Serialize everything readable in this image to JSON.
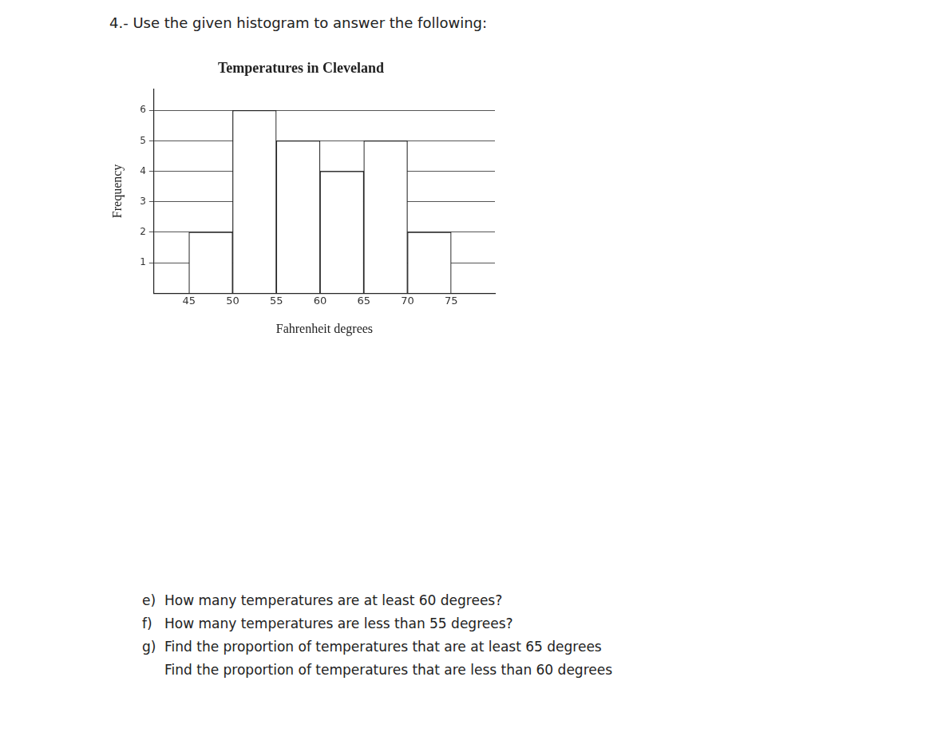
{
  "header": "4.- Use the given histogram to answer the following:",
  "chart_data": {
    "type": "histogram",
    "title": "Temperatures in Cleveland",
    "x_label": "Fahrenheit degrees",
    "y_label": "Frequency",
    "bins": [
      45,
      50,
      55,
      60,
      65,
      70,
      75
    ],
    "values": [
      2,
      6,
      5,
      4,
      5,
      2
    ],
    "color": "#ffffff",
    "xlim": [
      41,
      80
    ],
    "xticks": [
      45,
      50,
      55,
      60,
      65,
      70,
      75
    ],
    "ylim": [
      0,
      6.7
    ],
    "yticks": [
      1,
      2,
      3,
      4,
      5,
      6
    ],
    "grid": true
  },
  "questions": [
    {
      "label": "e)",
      "text": "How many temperatures are at least 60 degrees?"
    },
    {
      "label": "f)",
      "text": "How many temperatures are less than 55 degrees?"
    },
    {
      "label": "g)",
      "text": "Find the proportion of temperatures that are at least 65 degrees"
    },
    {
      "text": "Find the proportion of temperatures that are less than 60 degrees"
    }
  ]
}
